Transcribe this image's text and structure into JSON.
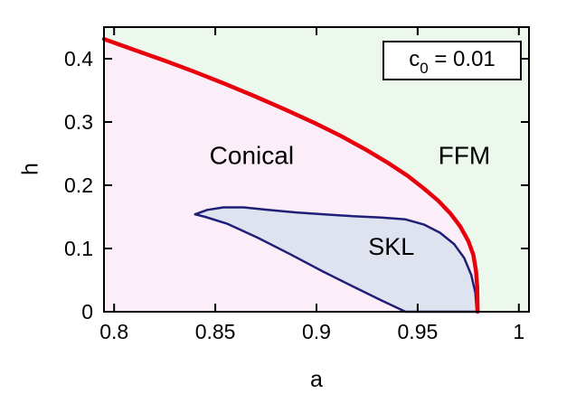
{
  "chart_data": {
    "type": "area",
    "description": "Phase diagram of h versus a showing Conical, FFM and SKL phase regions",
    "title": "",
    "xlabel": "a",
    "ylabel": "h",
    "xlim": [
      0.795,
      1.005
    ],
    "ylim": [
      0,
      0.45
    ],
    "grid": false,
    "annotation": "c0 = 0.01",
    "annotation_parts": {
      "prefix": "c",
      "subscript": "0",
      "rest": " = 0.01"
    },
    "xticks": {
      "values": [
        0.8,
        0.85,
        0.9,
        0.95,
        1.0
      ],
      "labels": [
        "0.8",
        "0.85",
        "0.9",
        "0.95",
        "1"
      ]
    },
    "yticks": {
      "values": [
        0,
        0.1,
        0.2,
        0.3,
        0.4
      ],
      "labels": [
        "0",
        "0.1",
        "0.2",
        "0.3",
        "0.4"
      ]
    },
    "colors": {
      "frame": "#000000",
      "conical_fill": "#fceef8",
      "ffm_fill": "#edf8ec",
      "skl_fill": "#dfe3f0",
      "boundary_red": "#e8000d",
      "skl_outline": "#1f1f78"
    },
    "regions": [
      {
        "name": "FFM",
        "fill": "#edf8ec",
        "label": "FFM",
        "label_pos": [
          0.973,
          0.247
        ],
        "label_size": 28
      },
      {
        "name": "Conical",
        "fill": "#fceef8",
        "label": "Conical",
        "label_pos": [
          0.868,
          0.247
        ],
        "label_size": 28
      },
      {
        "name": "SKL",
        "fill": "#dfe3f0",
        "label": "SKL",
        "label_pos": [
          0.937,
          0.103
        ],
        "label_size": 27
      }
    ],
    "series": [
      {
        "name": "conical-ffm-boundary",
        "color": "#e8000d",
        "width": 4.5,
        "points": [
          [
            0.795,
            0.431
          ],
          [
            0.81,
            0.414
          ],
          [
            0.825,
            0.397
          ],
          [
            0.84,
            0.379
          ],
          [
            0.855,
            0.36
          ],
          [
            0.87,
            0.34
          ],
          [
            0.885,
            0.319
          ],
          [
            0.9,
            0.297
          ],
          [
            0.912,
            0.278
          ],
          [
            0.924,
            0.257
          ],
          [
            0.935,
            0.236
          ],
          [
            0.945,
            0.215
          ],
          [
            0.953,
            0.195
          ],
          [
            0.96,
            0.176
          ],
          [
            0.966,
            0.156
          ],
          [
            0.971,
            0.135
          ],
          [
            0.975,
            0.112
          ],
          [
            0.9775,
            0.09
          ],
          [
            0.9788,
            0.065
          ],
          [
            0.9794,
            0.04
          ],
          [
            0.9796,
            0.0
          ]
        ]
      },
      {
        "name": "skl-boundary",
        "color": "#1f1f78",
        "width": 2.5,
        "closed": true,
        "points": [
          [
            0.84,
            0.154
          ],
          [
            0.846,
            0.161
          ],
          [
            0.854,
            0.165
          ],
          [
            0.864,
            0.165
          ],
          [
            0.876,
            0.161
          ],
          [
            0.89,
            0.157
          ],
          [
            0.904,
            0.154
          ],
          [
            0.918,
            0.151
          ],
          [
            0.932,
            0.149
          ],
          [
            0.944,
            0.146
          ],
          [
            0.953,
            0.138
          ],
          [
            0.961,
            0.125
          ],
          [
            0.968,
            0.107
          ],
          [
            0.973,
            0.085
          ],
          [
            0.9765,
            0.058
          ],
          [
            0.9785,
            0.03
          ],
          [
            0.9792,
            0.0
          ],
          [
            0.944,
            0.0
          ],
          [
            0.932,
            0.018
          ],
          [
            0.918,
            0.04
          ],
          [
            0.903,
            0.064
          ],
          [
            0.887,
            0.091
          ],
          [
            0.871,
            0.117
          ],
          [
            0.856,
            0.139
          ],
          [
            0.845,
            0.15
          ]
        ]
      }
    ]
  }
}
